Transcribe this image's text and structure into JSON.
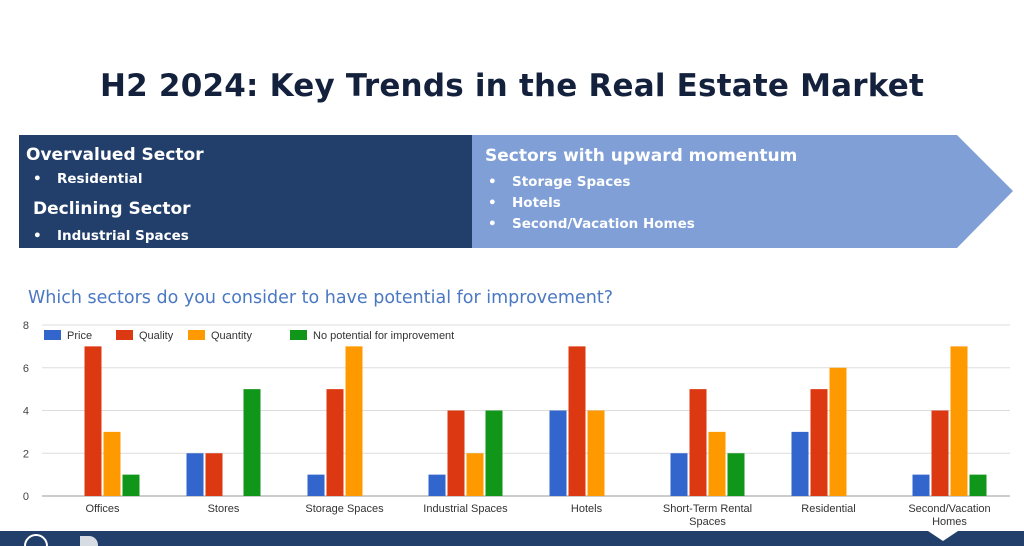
{
  "title": "H2 2024: Key Trends in the Real Estate Market",
  "left_panel": {
    "overvalued_heading": "Overvalued Sector",
    "overvalued_items": [
      "Residential"
    ],
    "declining_heading": "Declining Sector",
    "declining_items": [
      "Industrial Spaces"
    ]
  },
  "right_panel": {
    "heading": "Sectors with upward momentum",
    "items": [
      "Storage Spaces",
      "Hotels",
      "Second/Vacation Homes"
    ]
  },
  "bullet_char": "•",
  "colors": {
    "navy": "#223f6b",
    "light_blue": "#7f9fd6",
    "title": "#14213d",
    "question": "#4a78c2"
  },
  "chart_data": {
    "type": "bar",
    "title": "Which sectors do you consider to have potential for improvement?",
    "categories": [
      [
        "Offices"
      ],
      [
        "Stores"
      ],
      [
        "Storage Spaces"
      ],
      [
        "Industrial Spaces"
      ],
      [
        "Hotels"
      ],
      [
        "Short-Term Rental",
        "Spaces"
      ],
      [
        "Residential"
      ],
      [
        "Second/Vacation",
        "Homes"
      ]
    ],
    "series": [
      {
        "name": "Price",
        "color": "#3366cc",
        "values": [
          0,
          2,
          1,
          1,
          4,
          2,
          3,
          1
        ]
      },
      {
        "name": "Quality",
        "color": "#dc3912",
        "values": [
          7,
          2,
          5,
          4,
          7,
          5,
          5,
          4
        ]
      },
      {
        "name": "Quantity",
        "color": "#ff9900",
        "values": [
          3,
          0,
          7,
          2,
          4,
          3,
          6,
          7
        ]
      },
      {
        "name": "No potential for improvement",
        "color": "#109618",
        "values": [
          1,
          5,
          0,
          4,
          0,
          2,
          0,
          1
        ]
      }
    ],
    "ylim": [
      0,
      8
    ],
    "yticks": [
      0,
      2,
      4,
      6,
      8
    ],
    "grid": true,
    "legend": "top-left",
    "xlabel": "",
    "ylabel": ""
  }
}
